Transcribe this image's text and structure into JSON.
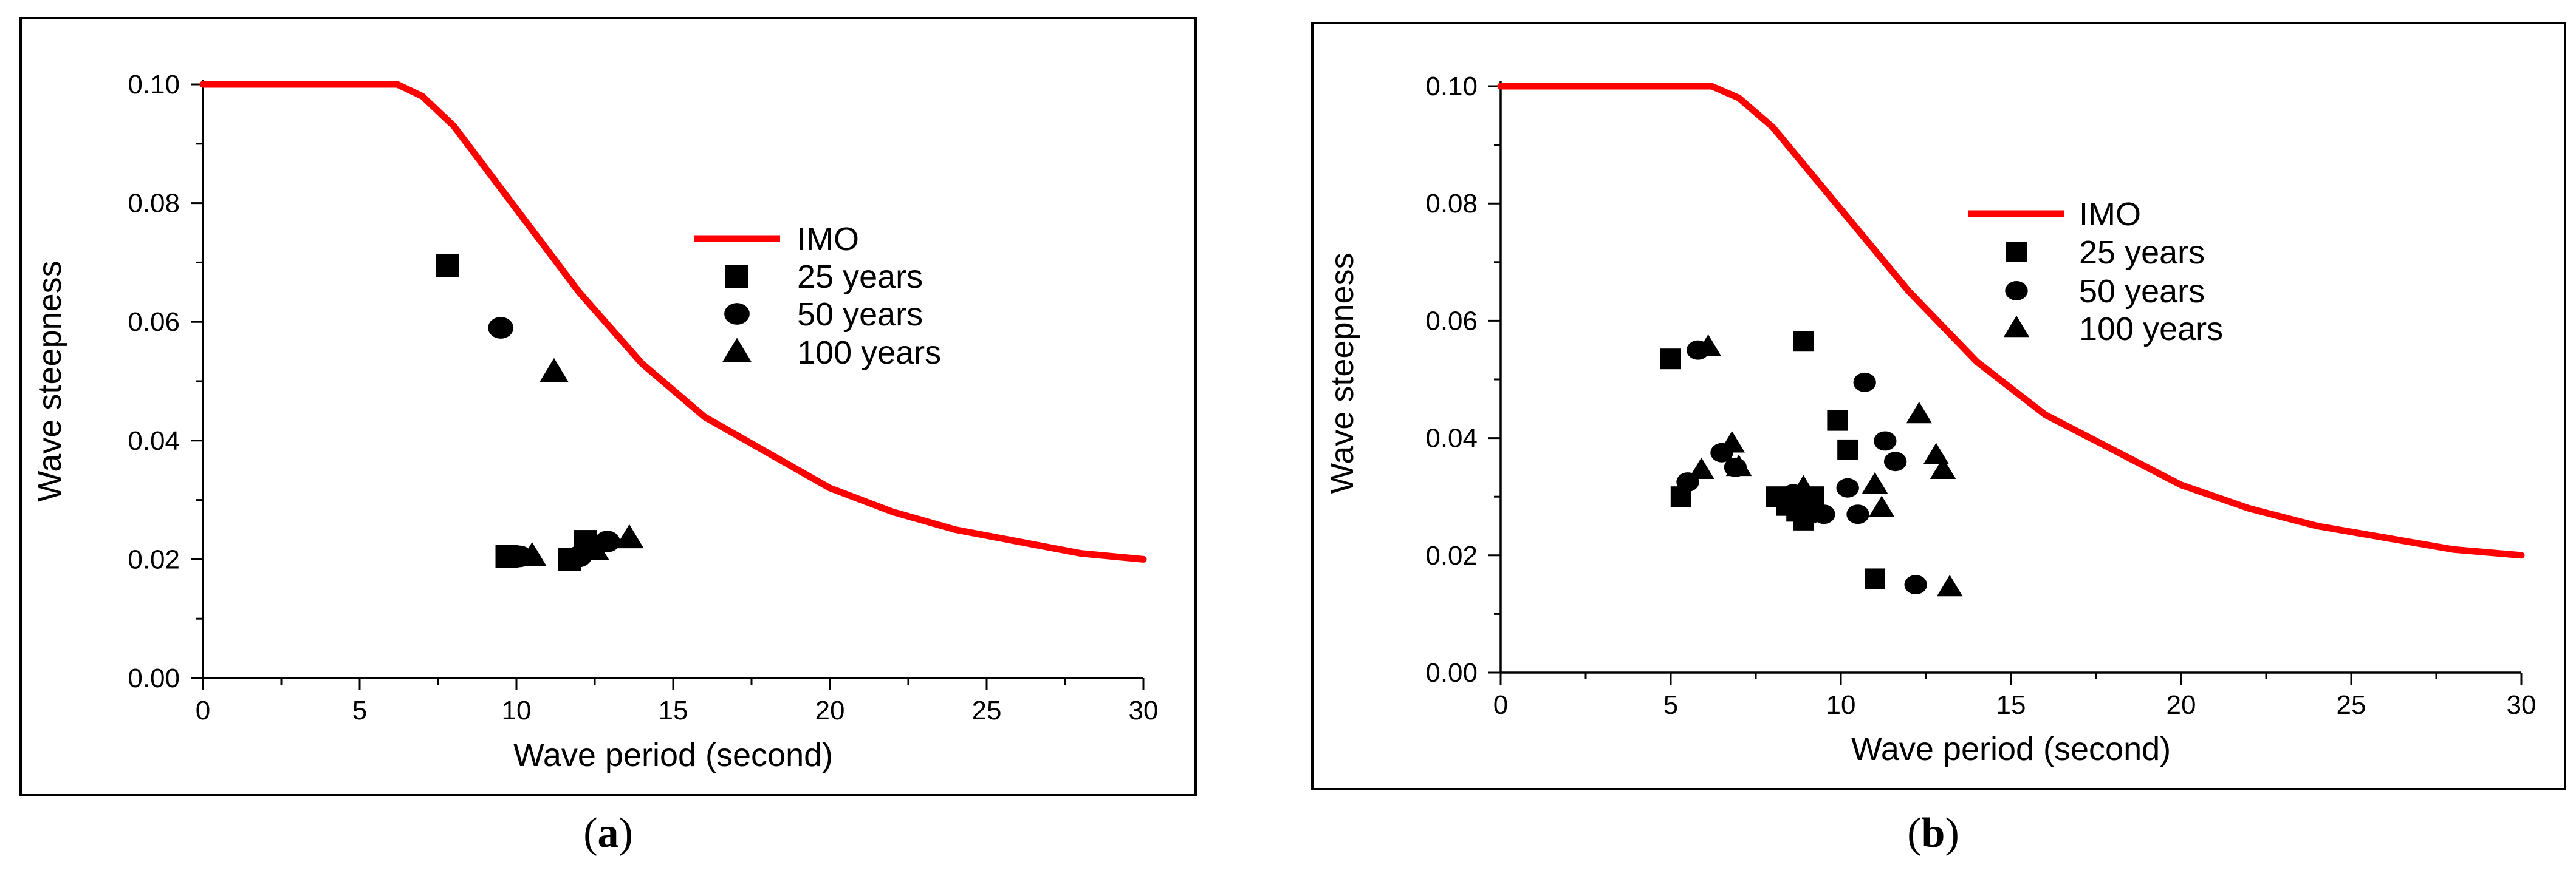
{
  "panels": [
    {
      "caption_letter": "a",
      "legend": [
        "IMO",
        "25 years",
        "50 years",
        "100 years"
      ]
    },
    {
      "caption_letter": "b",
      "legend": [
        "IMO",
        "25 years",
        "50 years",
        "100 years"
      ]
    }
  ],
  "colors": {
    "imo": "#ff0000",
    "markers": "#000000"
  },
  "chart_data": [
    {
      "type": "scatter",
      "title": "",
      "xlabel": "Wave period (second)",
      "ylabel": "Wave steepness",
      "xlim": [
        0,
        30
      ],
      "ylim": [
        0,
        0.1
      ],
      "xticks": [
        0,
        5,
        10,
        15,
        20,
        25,
        30
      ],
      "yticks": [
        0,
        0.02,
        0.04,
        0.06,
        0.08,
        0.1
      ],
      "xtick_labels": [
        "0",
        "5",
        "10",
        "15",
        "20",
        "25",
        "30"
      ],
      "ytick_labels": [
        "0.00",
        "0.02",
        "0.04",
        "0.06",
        "0.08",
        "0.10"
      ],
      "legend_position": "right",
      "series": [
        {
          "name": "IMO",
          "kind": "line",
          "x": [
            0,
            6.2,
            7,
            8,
            10,
            12,
            14,
            16,
            18,
            20,
            22,
            24,
            26,
            28,
            30
          ],
          "y": [
            0.1,
            0.1,
            0.098,
            0.093,
            0.079,
            0.065,
            0.053,
            0.044,
            0.038,
            0.032,
            0.028,
            0.025,
            0.023,
            0.021,
            0.02
          ]
        },
        {
          "name": "25 years",
          "kind": "square",
          "x": [
            7.8,
            9.7,
            11.7,
            12.2
          ],
          "y": [
            0.0695,
            0.0205,
            0.02,
            0.023
          ]
        },
        {
          "name": "50 years",
          "kind": "circle",
          "x": [
            9.5,
            10.1,
            12.0,
            12.9
          ],
          "y": [
            0.059,
            0.0205,
            0.0205,
            0.023
          ]
        },
        {
          "name": "100 years",
          "kind": "triangle",
          "x": [
            11.2,
            10.5,
            12.5,
            13.6
          ],
          "y": [
            0.0515,
            0.0205,
            0.0215,
            0.0235
          ]
        }
      ]
    },
    {
      "type": "scatter",
      "title": "",
      "xlabel": "Wave period (second)",
      "ylabel": "Wave steepness",
      "xlim": [
        0,
        30
      ],
      "ylim": [
        0,
        0.1
      ],
      "xticks": [
        0,
        5,
        10,
        15,
        20,
        25,
        30
      ],
      "yticks": [
        0,
        0.02,
        0.04,
        0.06,
        0.08,
        0.1
      ],
      "xtick_labels": [
        "0",
        "5",
        "10",
        "15",
        "20",
        "25",
        "30"
      ],
      "ytick_labels": [
        "0.00",
        "0.02",
        "0.04",
        "0.06",
        "0.08",
        "0.10"
      ],
      "legend_position": "right",
      "series": [
        {
          "name": "IMO",
          "kind": "line",
          "x": [
            0,
            6.2,
            7,
            8,
            10,
            12,
            14,
            16,
            18,
            20,
            22,
            24,
            26,
            28,
            30
          ],
          "y": [
            0.1,
            0.1,
            0.098,
            0.093,
            0.079,
            0.065,
            0.053,
            0.044,
            0.038,
            0.032,
            0.028,
            0.025,
            0.023,
            0.021,
            0.02
          ]
        },
        {
          "name": "25 years",
          "kind": "square",
          "x": [
            5.0,
            5.3,
            8.9,
            9.9,
            10.2,
            8.1,
            8.4,
            8.7,
            8.9,
            9.2,
            11.0
          ],
          "y": [
            0.0535,
            0.03,
            0.0565,
            0.043,
            0.038,
            0.03,
            0.0285,
            0.0275,
            0.026,
            0.03,
            0.016
          ]
        },
        {
          "name": "50 years",
          "kind": "circle",
          "x": [
            5.5,
            5.8,
            6.5,
            6.9,
            8.6,
            8.9,
            9.1,
            10.2,
            10.5,
            10.7,
            11.3,
            11.6,
            12.2,
            9.5
          ],
          "y": [
            0.0325,
            0.055,
            0.0375,
            0.035,
            0.0305,
            0.029,
            0.027,
            0.0315,
            0.027,
            0.0495,
            0.0395,
            0.036,
            0.015,
            0.027
          ]
        },
        {
          "name": "100 years",
          "kind": "triangle",
          "x": [
            5.9,
            6.1,
            6.8,
            7.0,
            8.9,
            9.2,
            11.0,
            11.2,
            12.3,
            12.8,
            13.0,
            13.2
          ],
          "y": [
            0.0345,
            0.0555,
            0.039,
            0.035,
            0.0315,
            0.0285,
            0.032,
            0.028,
            0.044,
            0.037,
            0.0345,
            0.0145
          ]
        }
      ]
    }
  ]
}
